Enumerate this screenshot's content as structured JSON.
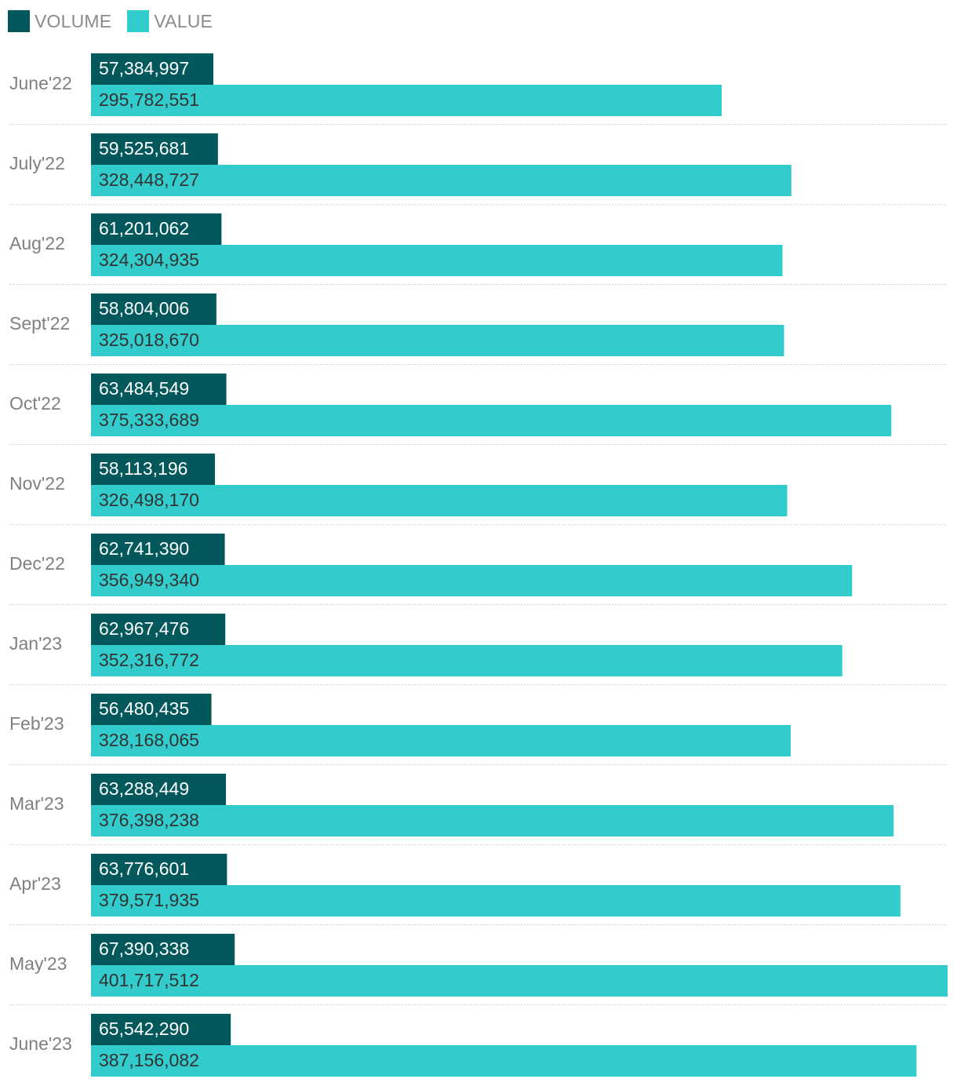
{
  "legend": [
    {
      "label": "VOLUME",
      "color": "#02585b"
    },
    {
      "label": "VALUE",
      "color": "#33cccc"
    }
  ],
  "colors": {
    "volume_bar": "#02585b",
    "value_bar": "#33cccc",
    "volume_text": "#ffffff",
    "value_text": "#333333",
    "category_text": "#808080",
    "separator": "#cccccc"
  },
  "chart_data": {
    "type": "bar",
    "orientation": "horizontal",
    "categories": [
      "June'22",
      "July'22",
      "Aug'22",
      "Sept'22",
      "Oct'22",
      "Nov'22",
      "Dec'22",
      "Jan'23",
      "Feb'23",
      "Mar'23",
      "Apr'23",
      "May'23",
      "June'23"
    ],
    "series": [
      {
        "name": "VOLUME",
        "values": [
          57384997,
          59525681,
          61201062,
          58804006,
          63484549,
          58113196,
          62741390,
          62967476,
          56480435,
          63288449,
          63776601,
          67390338,
          65542290
        ],
        "labels": [
          "57,384,997",
          "59,525,681",
          "61,201,062",
          "58,804,006",
          "63,484,549",
          "58,113,196",
          "62,741,390",
          "62,967,476",
          "56,480,435",
          "63,288,449",
          "63,776,601",
          "67,390,338",
          "65,542,290"
        ]
      },
      {
        "name": "VALUE",
        "values": [
          295782551,
          328448727,
          324304935,
          325018670,
          375333689,
          326498170,
          356949340,
          352316772,
          328168065,
          376398238,
          379571935,
          401717512,
          387156082
        ],
        "labels": [
          "295,782,551",
          "328,448,727",
          "324,304,935",
          "325,018,670",
          "375,333,689",
          "326,498,170",
          "356,949,340",
          "352,316,772",
          "328,168,065",
          "376,398,238",
          "379,571,935",
          "401,717,512",
          "387,156,082"
        ]
      }
    ],
    "xlim": [
      0,
      401717512
    ],
    "grid": false,
    "legend_position": "top-left",
    "data_labels": true
  }
}
